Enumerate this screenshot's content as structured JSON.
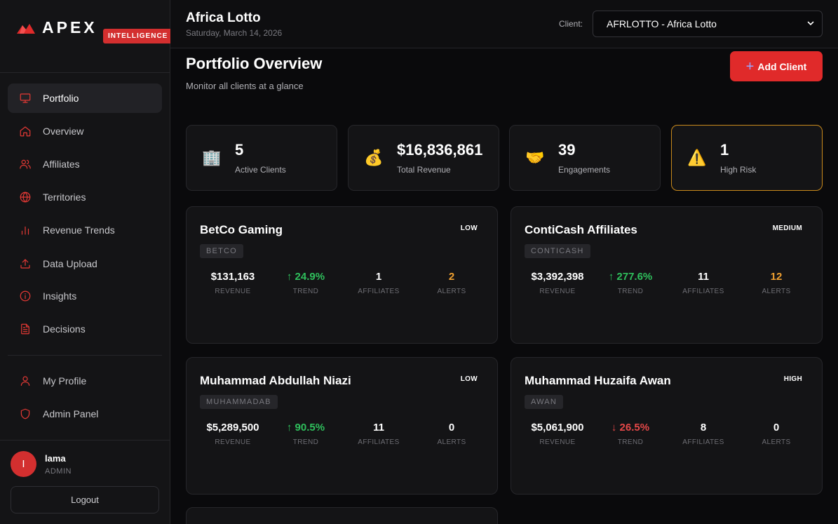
{
  "brand": {
    "name": "APEX",
    "badge": "INTELLIGENCE"
  },
  "sidebar": {
    "items": [
      {
        "label": "Portfolio",
        "icon": "monitor-icon",
        "active": true
      },
      {
        "label": "Overview",
        "icon": "home-icon"
      },
      {
        "label": "Affiliates",
        "icon": "users-icon"
      },
      {
        "label": "Territories",
        "icon": "globe-icon"
      },
      {
        "label": "Revenue Trends",
        "icon": "bar-chart-icon"
      },
      {
        "label": "Data Upload",
        "icon": "upload-icon"
      },
      {
        "label": "Insights",
        "icon": "info-icon"
      },
      {
        "label": "Decisions",
        "icon": "document-icon"
      }
    ],
    "secondary": [
      {
        "label": "My Profile",
        "icon": "user-icon"
      },
      {
        "label": "Admin Panel",
        "icon": "shield-icon"
      }
    ],
    "user": {
      "initial": "I",
      "name": "lama",
      "role": "ADMIN"
    },
    "logout_label": "Logout"
  },
  "header": {
    "title": "Africa Lotto",
    "date": "Saturday, March 14, 2026",
    "client_label": "Client:",
    "client_selected": "AFRLOTTO - Africa Lotto"
  },
  "page": {
    "title": "Portfolio Overview",
    "subtitle": "Monitor all clients at a glance",
    "add_button": "Add Client"
  },
  "stats": [
    {
      "icon": "🏢",
      "icon_name": "building-icon",
      "value": "5",
      "label": "Active Clients"
    },
    {
      "icon": "💰",
      "icon_name": "money-bag-icon",
      "value": "$16,836,861",
      "label": "Total Revenue"
    },
    {
      "icon": "🤝",
      "icon_name": "handshake-icon",
      "value": "39",
      "label": "Engagements"
    },
    {
      "icon": "⚠️",
      "icon_name": "warning-icon",
      "value": "1",
      "label": "High Risk"
    }
  ],
  "metric_labels": {
    "revenue": "REVENUE",
    "trend": "TREND",
    "affiliates": "AFFILIATES",
    "alerts": "ALERTS"
  },
  "clients": [
    {
      "name": "BetCo Gaming",
      "risk": "LOW",
      "code": "BETCO",
      "revenue": "$131,163",
      "trend": "↑ 24.9%",
      "trend_dir": "up",
      "affiliates": "1",
      "alerts": "2"
    },
    {
      "name": "ContiCash Affiliates",
      "risk": "MEDIUM",
      "code": "CONTICASH",
      "revenue": "$3,392,398",
      "trend": "↑ 277.6%",
      "trend_dir": "up",
      "affiliates": "11",
      "alerts": "12"
    },
    {
      "name": "Muhammad Abdullah Niazi",
      "risk": "LOW",
      "code": "MUHAMMADAB",
      "revenue": "$5,289,500",
      "trend": "↑ 90.5%",
      "trend_dir": "up",
      "affiliates": "11",
      "alerts": "0"
    },
    {
      "name": "Muhammad Huzaifa Awan",
      "risk": "HIGH",
      "code": "AWAN",
      "revenue": "$5,061,900",
      "trend": "↓ 26.5%",
      "trend_dir": "down",
      "affiliates": "8",
      "alerts": "0"
    }
  ],
  "colors": {
    "accent": "#e02a2a",
    "up": "#2fbf5c",
    "down": "#e54848",
    "warn": "#f0a030",
    "risk_border": "#c98a1c"
  }
}
